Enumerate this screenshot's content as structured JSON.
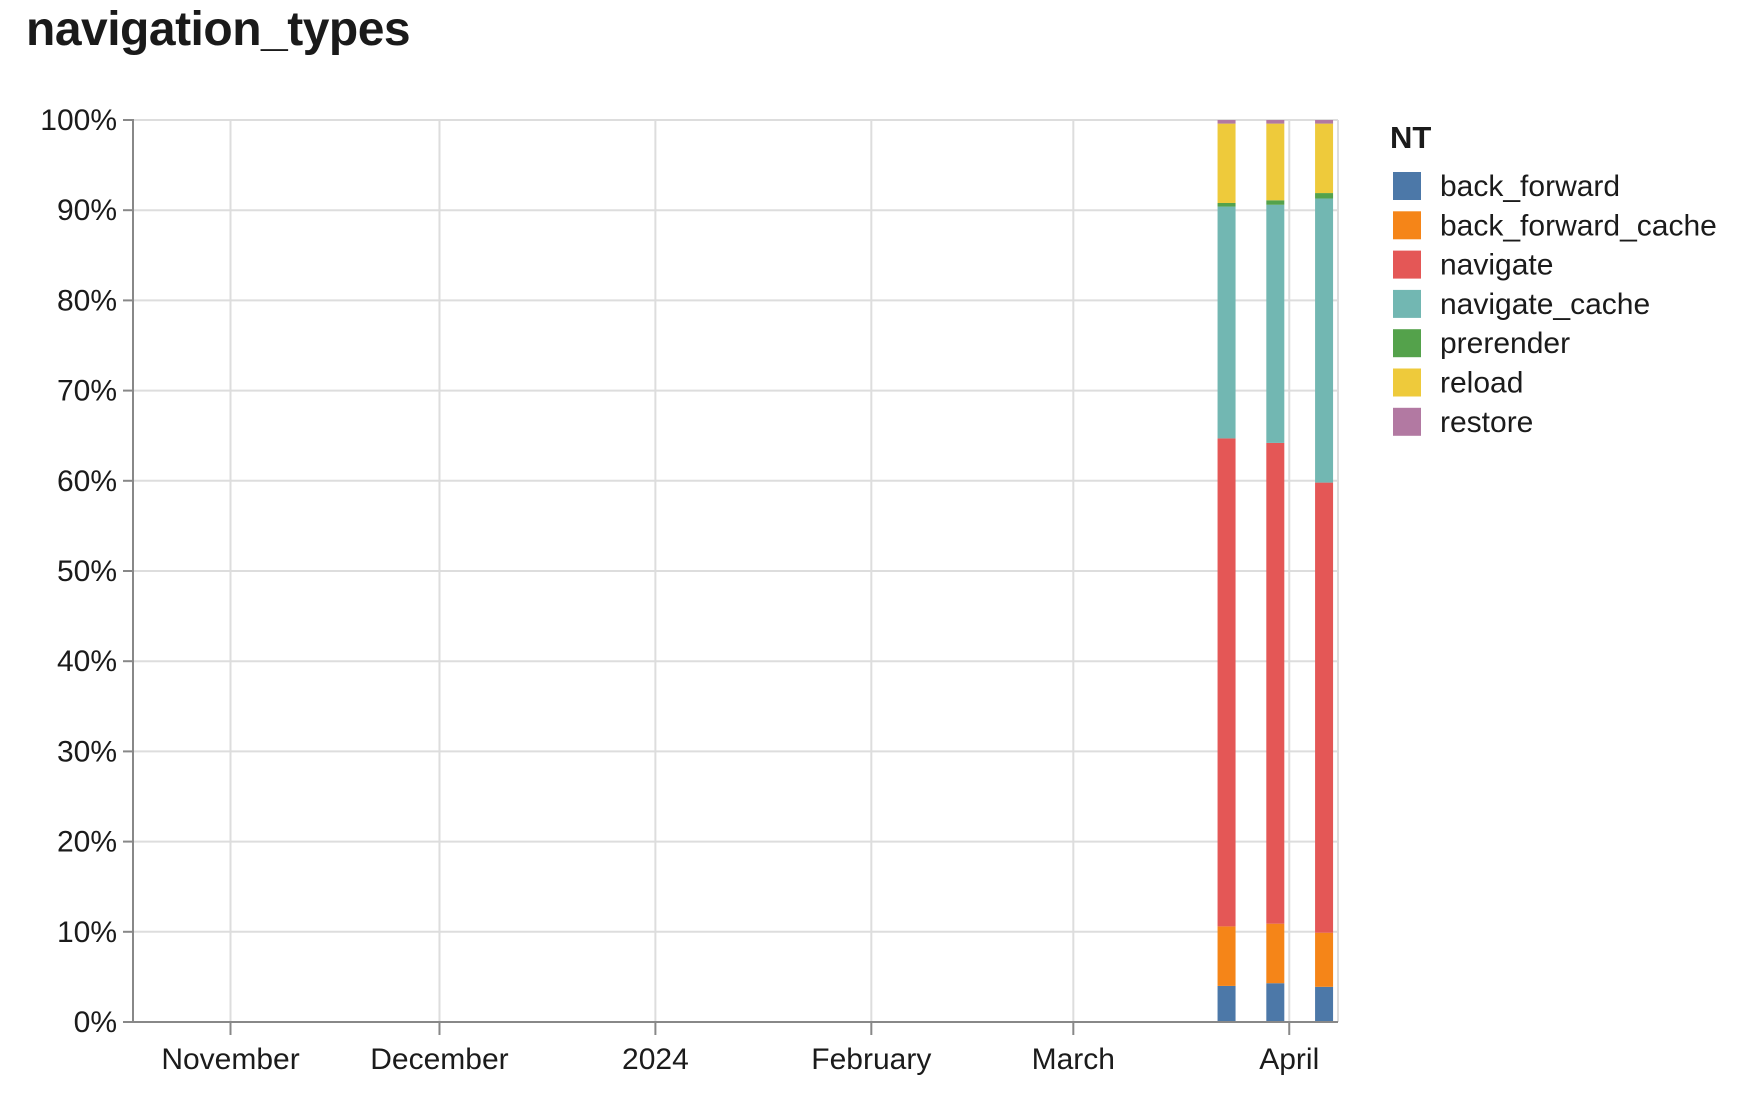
{
  "title": "navigation_types",
  "colors": {
    "background": "#ffffff",
    "grid": "#dddddd",
    "axis": "#888888",
    "label": "#1b1b1b",
    "title": "#1a1a1a"
  },
  "chart_data": {
    "type": "bar",
    "stacked": true,
    "normalized": true,
    "title": "navigation_types",
    "x": [
      "2024-03-23",
      "2024-03-30",
      "2024-04-06"
    ],
    "series": [
      {
        "name": "back_forward",
        "color": "#4C78A8",
        "values": [
          4.0,
          4.3,
          3.9
        ]
      },
      {
        "name": "back_forward_cache",
        "color": "#F58518",
        "values": [
          6.6,
          6.6,
          6.0
        ]
      },
      {
        "name": "navigate",
        "color": "#E45756",
        "values": [
          54.1,
          53.3,
          49.9
        ]
      },
      {
        "name": "navigate_cache",
        "color": "#72B7B2",
        "values": [
          25.7,
          26.4,
          31.5
        ]
      },
      {
        "name": "prerender",
        "color": "#54A24B",
        "values": [
          0.4,
          0.5,
          0.6
        ]
      },
      {
        "name": "reload",
        "color": "#EECA3B",
        "values": [
          8.8,
          8.5,
          7.7
        ]
      },
      {
        "name": "restore",
        "color": "#B279A2",
        "values": [
          0.4,
          0.4,
          0.4
        ]
      }
    ],
    "legend": {
      "title": "NT",
      "position": "right",
      "items": [
        "back_forward",
        "back_forward_cache",
        "navigate",
        "navigate_cache",
        "prerender",
        "reload",
        "restore"
      ]
    },
    "x_axis": {
      "type": "time",
      "domain": [
        "2023-10-18",
        "2024-04-08"
      ],
      "tick_dates": [
        "2023-11-01",
        "2023-12-01",
        "2024-01-01",
        "2024-02-01",
        "2024-03-01",
        "2024-04-01"
      ],
      "tick_labels": [
        "November",
        "December",
        "2024",
        "February",
        "March",
        "April"
      ]
    },
    "y_axis": {
      "lim": [
        0,
        100
      ],
      "grid": true,
      "tick_labels": [
        "0%",
        "10%",
        "20%",
        "30%",
        "40%",
        "50%",
        "60%",
        "70%",
        "80%",
        "90%",
        "100%"
      ]
    }
  }
}
